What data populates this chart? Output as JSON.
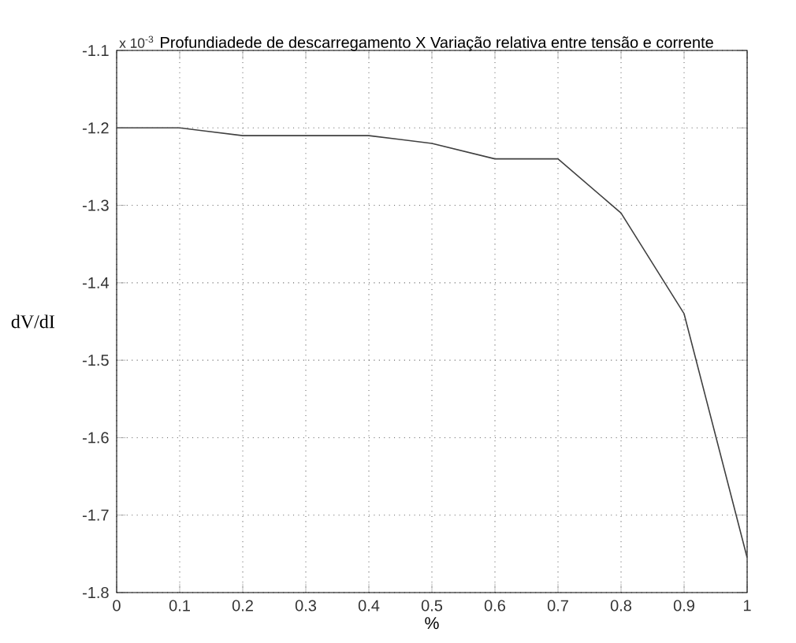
{
  "chart_data": {
    "type": "line",
    "title": "Profundiadede de descarregamento X Variação relativa entre tensão e corrente",
    "xlabel": "%",
    "ylabel": "dV/dI",
    "annotations": [
      "x 10$^{-3}$"
    ],
    "x": [
      0,
      0.1,
      0.2,
      0.3,
      0.4,
      0.5,
      0.6,
      0.7,
      0.8,
      0.9,
      1
    ],
    "series": [
      {
        "color": "#404040",
        "values": [
          -1.2,
          -1.2,
          -1.21,
          -1.21,
          -1.21,
          -1.22,
          -1.24,
          -1.24,
          -1.31,
          -1.44,
          -1.755
        ]
      }
    ],
    "xlim": [
      0,
      1
    ],
    "ylim": [
      -1.8,
      -1.1
    ],
    "xticks": [
      0,
      0.1,
      0.2,
      0.3,
      0.4,
      0.5,
      0.6,
      0.7,
      0.8,
      0.9,
      1
    ],
    "yticks": [
      -1.8,
      -1.7,
      -1.6,
      -1.5,
      -1.4,
      -1.3,
      -1.2,
      -1.1
    ],
    "grid": true,
    "line_style": "solid",
    "marker": "none"
  }
}
